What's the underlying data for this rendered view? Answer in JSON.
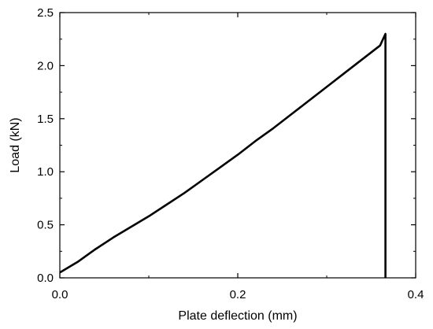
{
  "chart_data": {
    "type": "line",
    "title": "",
    "xlabel": "Plate deflection (mm)",
    "ylabel": "Load (kN)",
    "xlim": [
      0.0,
      0.4
    ],
    "ylim": [
      0.0,
      2.5
    ],
    "x_ticks": [
      0.0,
      0.2,
      0.4
    ],
    "x_tick_labels": [
      "0.0",
      "0.2",
      "0.4"
    ],
    "y_ticks": [
      0.0,
      0.5,
      1.0,
      1.5,
      2.0,
      2.5
    ],
    "y_tick_labels": [
      "0.0",
      "0.5",
      "1.0",
      "1.5",
      "2.0",
      "2.5"
    ],
    "grid": false,
    "legend": "none",
    "line_color": "#000000",
    "series": [
      {
        "x": [
          0.0,
          0.02,
          0.04,
          0.06,
          0.08,
          0.1,
          0.12,
          0.14,
          0.16,
          0.18,
          0.2,
          0.22,
          0.24,
          0.26,
          0.28,
          0.3,
          0.32,
          0.34,
          0.36,
          0.366,
          0.366
        ],
        "y": [
          0.05,
          0.15,
          0.27,
          0.38,
          0.48,
          0.58,
          0.69,
          0.8,
          0.92,
          1.04,
          1.16,
          1.29,
          1.41,
          1.54,
          1.67,
          1.8,
          1.93,
          2.06,
          2.19,
          2.3,
          0.0
        ]
      }
    ]
  }
}
